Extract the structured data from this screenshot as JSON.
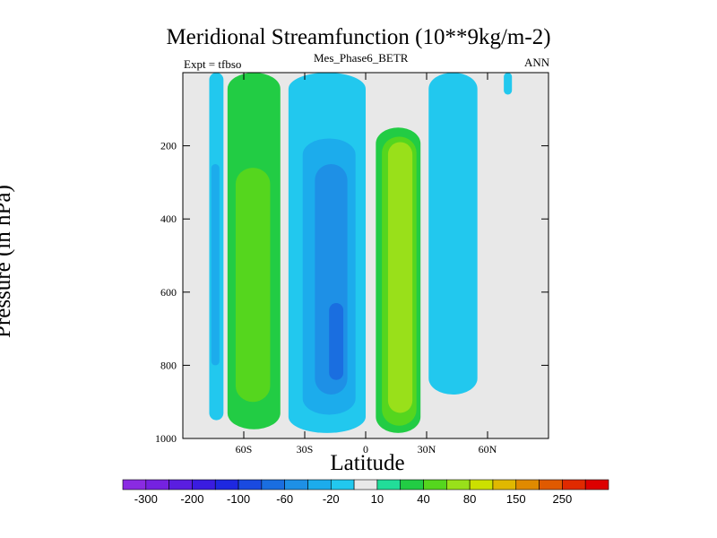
{
  "chart_data": {
    "type": "heatmap",
    "title": "Meridional Streamfunction (10**9kg/m-2)",
    "left_label": "Expt = tfbso",
    "center_label": "Mes_Phase6_BETR",
    "right_label": "ANN",
    "xlabel": "Latitude",
    "ylabel": "Pressure (in hPa)",
    "xlim": [
      -90,
      90
    ],
    "ylim": [
      1000,
      0
    ],
    "x_ticks": [
      {
        "value": -60,
        "label": "60S"
      },
      {
        "value": -30,
        "label": "30S"
      },
      {
        "value": 0,
        "label": "0"
      },
      {
        "value": 30,
        "label": "30N"
      },
      {
        "value": 60,
        "label": "60N"
      }
    ],
    "y_ticks": [
      {
        "value": 200,
        "label": "200"
      },
      {
        "value": 400,
        "label": "400"
      },
      {
        "value": 600,
        "label": "600"
      },
      {
        "value": 800,
        "label": "800"
      },
      {
        "value": 1000,
        "label": "1000"
      }
    ],
    "levels": [
      -300,
      -250,
      -200,
      -150,
      -100,
      -80,
      -60,
      -40,
      -20,
      -10,
      10,
      20,
      40,
      60,
      80,
      100,
      150,
      200,
      250,
      300
    ],
    "colorbar_labels": [
      {
        "level_index": 0,
        "label": "-300"
      },
      {
        "level_index": 2,
        "label": "-200"
      },
      {
        "level_index": 4,
        "label": "-100"
      },
      {
        "level_index": 6,
        "label": "-60"
      },
      {
        "level_index": 8,
        "label": "-20"
      },
      {
        "level_index": 10,
        "label": "10"
      },
      {
        "level_index": 12,
        "label": "40"
      },
      {
        "level_index": 14,
        "label": "80"
      },
      {
        "level_index": 16,
        "label": "150"
      },
      {
        "level_index": 18,
        "label": "250"
      }
    ],
    "colors": [
      "#8a2be2",
      "#7522e0",
      "#5a1ee0",
      "#3a1ce0",
      "#1e28e0",
      "#1a4ae0",
      "#1a6ee0",
      "#1e90e6",
      "#1cacec",
      "#22c8ee",
      "#e8e8e8",
      "#22dd99",
      "#22cc44",
      "#55d61e",
      "#99e01a",
      "#cce000",
      "#e0b800",
      "#e08a00",
      "#e05a00",
      "#e02a00",
      "#dd0000"
    ],
    "background_value": 0,
    "features": [
      {
        "name": "sh-polar-cell",
        "value": -20,
        "lat_min": -77,
        "lat_max": -70,
        "p_top": 0,
        "p_bottom": 950
      },
      {
        "name": "sh-polar-cell-core",
        "value": -40,
        "lat_min": -76,
        "lat_max": -72,
        "p_top": 250,
        "p_bottom": 800
      },
      {
        "name": "sh-ferrel-cell",
        "value": 20,
        "lat_min": -68,
        "lat_max": -42,
        "p_top": 0,
        "p_bottom": 975
      },
      {
        "name": "sh-ferrel-cell-inner",
        "value": 40,
        "lat_min": -64,
        "lat_max": -47,
        "p_top": 260,
        "p_bottom": 900
      },
      {
        "name": "sh-hadley-cell",
        "value": -20,
        "lat_min": -38,
        "lat_max": 0,
        "p_top": 0,
        "p_bottom": 985
      },
      {
        "name": "sh-hadley-cell-core-1",
        "value": -40,
        "lat_min": -31,
        "lat_max": -5,
        "p_top": 180,
        "p_bottom": 935
      },
      {
        "name": "sh-hadley-cell-core-2",
        "value": -60,
        "lat_min": -25,
        "lat_max": -9,
        "p_top": 250,
        "p_bottom": 880
      },
      {
        "name": "sh-hadley-cell-core-3",
        "value": -80,
        "lat_min": -18,
        "lat_max": -11,
        "p_top": 630,
        "p_bottom": 840
      },
      {
        "name": "nh-hadley-cell",
        "value": 20,
        "lat_min": 5,
        "lat_max": 27,
        "p_top": 150,
        "p_bottom": 985
      },
      {
        "name": "nh-hadley-cell-core-1",
        "value": 40,
        "lat_min": 8,
        "lat_max": 25,
        "p_top": 175,
        "p_bottom": 965
      },
      {
        "name": "nh-hadley-cell-core-2",
        "value": 60,
        "lat_min": 11,
        "lat_max": 23,
        "p_top": 190,
        "p_bottom": 930
      },
      {
        "name": "nh-ferrel-cell",
        "value": -20,
        "lat_min": 31,
        "lat_max": 55,
        "p_top": 0,
        "p_bottom": 880
      },
      {
        "name": "nh-polar-cell",
        "value": -20,
        "lat_min": 68,
        "lat_max": 72,
        "p_top": 0,
        "p_bottom": 60
      }
    ]
  }
}
